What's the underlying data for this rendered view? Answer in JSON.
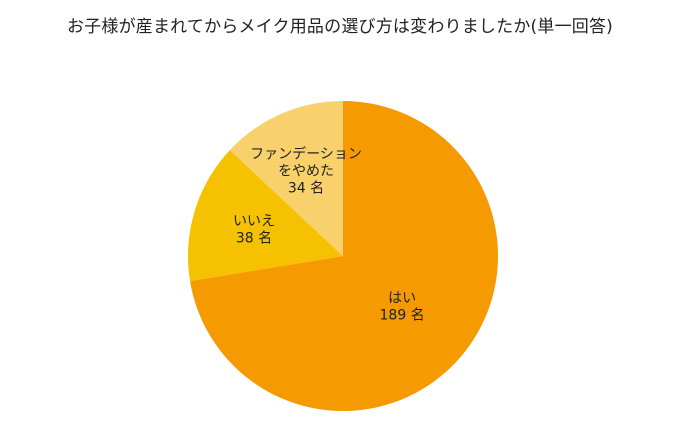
{
  "chart_data": {
    "type": "pie",
    "title": "お子様が産まれてからメイク用品の選び方は変わりましたか(単一回答)",
    "unit": "名",
    "slices": [
      {
        "label": "はい",
        "value": 189,
        "value_text": "189 名",
        "color": "#f59a00"
      },
      {
        "label": "いいえ",
        "value": 38,
        "value_text": "38 名",
        "color": "#f5c100"
      },
      {
        "label": "ファンデーションをやめた",
        "label_lines": [
          "ファンデーション",
          "をやめた"
        ],
        "value": 34,
        "value_text": "34 名",
        "color": "#f8d16c"
      }
    ],
    "start_angle_deg": 0,
    "direction": "clockwise"
  }
}
